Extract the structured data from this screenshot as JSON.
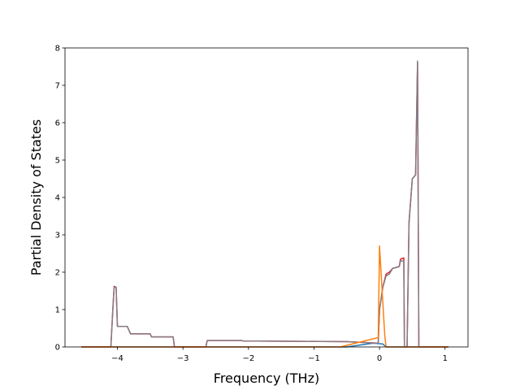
{
  "chart_data": {
    "type": "line",
    "xlabel": "Frequency (THz)",
    "ylabel": "Partial Density of States",
    "xlim": [
      -4.8,
      1.35
    ],
    "ylim": [
      0,
      8
    ],
    "xticks": [
      {
        "value": -4,
        "label": "−4"
      },
      {
        "value": -3,
        "label": "−3"
      },
      {
        "value": -2,
        "label": "−2"
      },
      {
        "value": -1,
        "label": "−1"
      },
      0,
      1
    ],
    "yticks": [
      0,
      1,
      2,
      3,
      4,
      5,
      6,
      7,
      8
    ],
    "series": [
      {
        "color": "#1f77b4",
        "x": [
          -4.55,
          -0.5,
          -0.1,
          0.05,
          0.1,
          1.05
        ],
        "values": [
          0,
          0,
          0.1,
          0.08,
          0,
          0
        ]
      },
      {
        "color": "#d62728",
        "x": [
          -4.55,
          -4.1,
          -4.07,
          -4.05,
          -4.02,
          -4.0,
          -3.85,
          -3.8,
          -3.5,
          -3.48,
          -3.15,
          -3.13,
          -2.65,
          -2.63,
          -2.1,
          -2.08,
          -1.2,
          -0.5,
          -0.02,
          0.0,
          0.05,
          0.1,
          0.15,
          0.2,
          0.3,
          0.32,
          0.37,
          0.38,
          0.42,
          0.45,
          0.5,
          0.55,
          0.58,
          0.6,
          1.05
        ],
        "values": [
          0,
          0,
          1.0,
          1.62,
          1.6,
          0.55,
          0.55,
          0.35,
          0.35,
          0.27,
          0.27,
          0,
          0,
          0.17,
          0.17,
          0.16,
          0.15,
          0.14,
          0.1,
          1.0,
          1.6,
          1.95,
          2.0,
          2.1,
          2.15,
          2.35,
          2.38,
          0,
          0,
          3.35,
          4.5,
          4.6,
          7.6,
          0,
          0
        ]
      },
      {
        "color": "#867b87",
        "x": [
          -4.55,
          -4.1,
          -4.07,
          -4.05,
          -4.02,
          -4.0,
          -3.85,
          -3.8,
          -3.5,
          -3.48,
          -3.15,
          -3.13,
          -2.65,
          -2.63,
          -2.1,
          -2.08,
          -1.2,
          -0.5,
          -0.02,
          0.0,
          0.05,
          0.1,
          0.15,
          0.2,
          0.3,
          0.32,
          0.37,
          0.38,
          0.42,
          0.45,
          0.5,
          0.55,
          0.58,
          0.6,
          1.05
        ],
        "values": [
          0,
          0,
          1.0,
          1.6,
          1.6,
          0.55,
          0.55,
          0.35,
          0.35,
          0.27,
          0.27,
          0,
          0,
          0.17,
          0.17,
          0.16,
          0.15,
          0.14,
          0.1,
          1.0,
          1.6,
          1.9,
          1.95,
          2.1,
          2.15,
          2.3,
          2.3,
          0,
          0,
          3.3,
          4.5,
          4.6,
          7.65,
          0,
          0
        ]
      },
      {
        "color": "#ff7f0e",
        "x": [
          -4.55,
          -0.6,
          -0.02,
          0.0,
          0.08,
          0.1,
          1.05
        ],
        "values": [
          0,
          0,
          0.25,
          2.7,
          0.3,
          0,
          0
        ]
      }
    ]
  }
}
